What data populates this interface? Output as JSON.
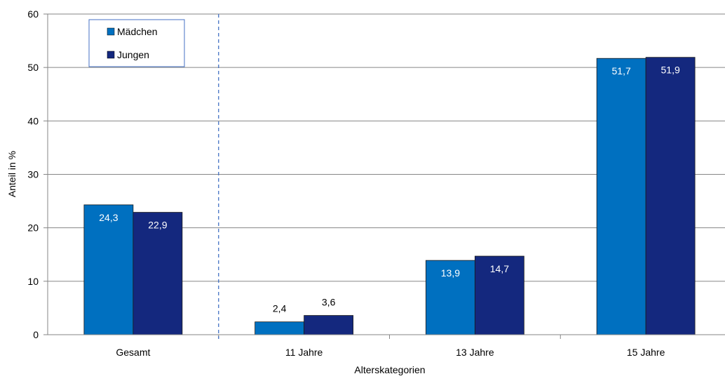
{
  "chart_data": {
    "type": "bar",
    "categories": [
      "Gesamt",
      "11 Jahre",
      "13 Jahre",
      "15 Jahre"
    ],
    "series": [
      {
        "name": "Mädchen",
        "values": [
          24.3,
          2.4,
          13.9,
          51.7
        ],
        "labels": [
          "24,3",
          "2,4",
          "13,9",
          "51,7"
        ],
        "color": "#0070C0"
      },
      {
        "name": "Jungen",
        "values": [
          22.9,
          3.6,
          14.7,
          51.9
        ],
        "labels": [
          "22,9",
          "3,6",
          "14,7",
          "51,9"
        ],
        "color": "#14287E"
      }
    ],
    "xlabel": "Alterskategorien",
    "ylabel": "Anteil in %",
    "ylim": [
      0,
      60
    ],
    "yticks": [
      0,
      10,
      20,
      30,
      40,
      50,
      60
    ],
    "grid": true,
    "legend_position": "top-left",
    "separator_after_category": "Gesamt"
  }
}
